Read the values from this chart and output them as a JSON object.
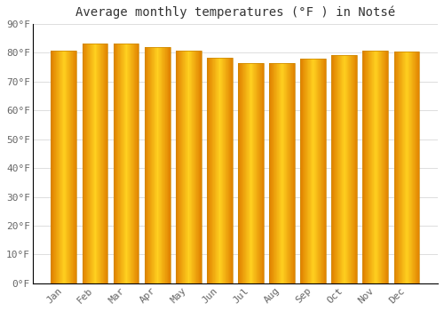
{
  "title": "Average monthly temperatures (°F ) in Notsé",
  "months": [
    "Jan",
    "Feb",
    "Mar",
    "Apr",
    "May",
    "Jun",
    "Jul",
    "Aug",
    "Sep",
    "Oct",
    "Nov",
    "Dec"
  ],
  "values": [
    80.6,
    83.1,
    83.1,
    82.0,
    80.6,
    78.1,
    76.5,
    76.3,
    77.9,
    79.0,
    80.6,
    80.4
  ],
  "bar_color_left": "#E08000",
  "bar_color_center": "#FFD040",
  "bar_color_right": "#E08000",
  "background_color": "#FFFFFF",
  "grid_color": "#DDDDDD",
  "axis_color": "#000000",
  "title_fontsize": 10,
  "tick_fontsize": 8,
  "ylim": [
    0,
    90
  ],
  "yticks": [
    0,
    10,
    20,
    30,
    40,
    50,
    60,
    70,
    80,
    90
  ]
}
